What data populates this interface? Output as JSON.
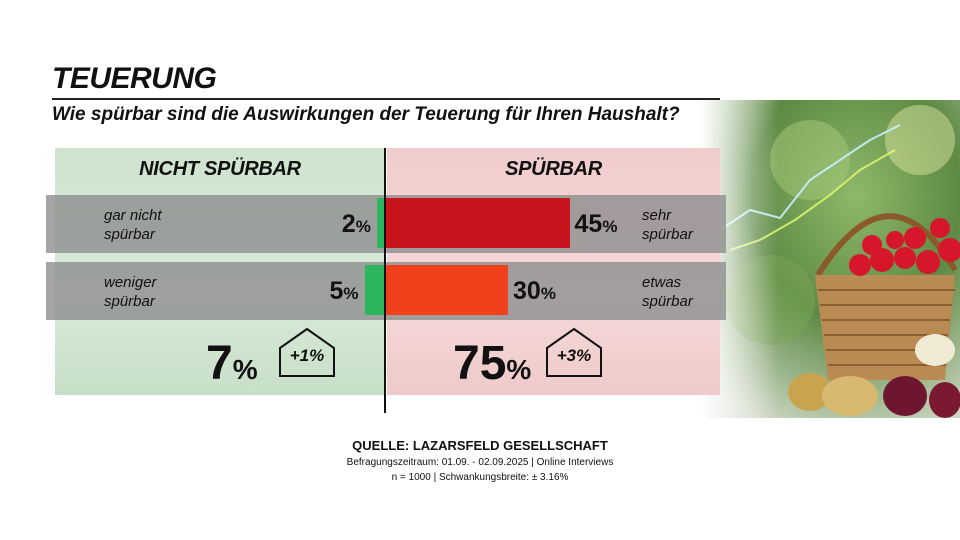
{
  "header": {
    "title": "TEUERUNG",
    "question": "Wie spürbar sind die Auswirkungen der Teuerung für Ihren Haushalt?"
  },
  "groups": {
    "left_label": "NICHT SPÜRBAR",
    "right_label": "SPÜRBAR",
    "left_total": "7",
    "right_total": "75",
    "left_change": "+1%",
    "right_change": "+3%",
    "pct_sign": "%"
  },
  "rows": [
    {
      "left_label": "gar nicht spürbar",
      "left_value": "2",
      "right_value": "45",
      "right_label": "sehr spürbar"
    },
    {
      "left_label": "weniger spürbar",
      "left_value": "5",
      "right_value": "30",
      "right_label": "etwas spürbar"
    }
  ],
  "colors": {
    "green_bar": "#2db55d",
    "dark_red_bar": "#c8141c",
    "orange_red_bar": "#f0401c"
  },
  "footer": {
    "source": "QUELLE:  LAZARSFELD GESELLSCHAFT",
    "period": "Befragungszeitraum: 01.09. - 02.09.2025 | Online Interviews",
    "sample": "n = 1000 |  Schwankungsbreite: ± 3.16%"
  },
  "chart_data": {
    "type": "bar",
    "orientation": "horizontal diverging",
    "title": "TEUERUNG",
    "subtitle": "Wie spürbar sind die Auswirkungen der Teuerung für Ihren Haushalt?",
    "categories": [
      "gar nicht spürbar / sehr spürbar",
      "weniger spürbar / etwas spürbar"
    ],
    "series": [
      {
        "name": "NICHT SPÜRBAR",
        "values": [
          2,
          5
        ],
        "labels": [
          "gar nicht spürbar",
          "weniger spürbar"
        ],
        "total": 7,
        "change": "+1%"
      },
      {
        "name": "SPÜRBAR",
        "values": [
          45,
          30
        ],
        "labels": [
          "sehr spürbar",
          "etwas spürbar"
        ],
        "total": 75,
        "change": "+3%"
      }
    ],
    "unit": "%"
  }
}
